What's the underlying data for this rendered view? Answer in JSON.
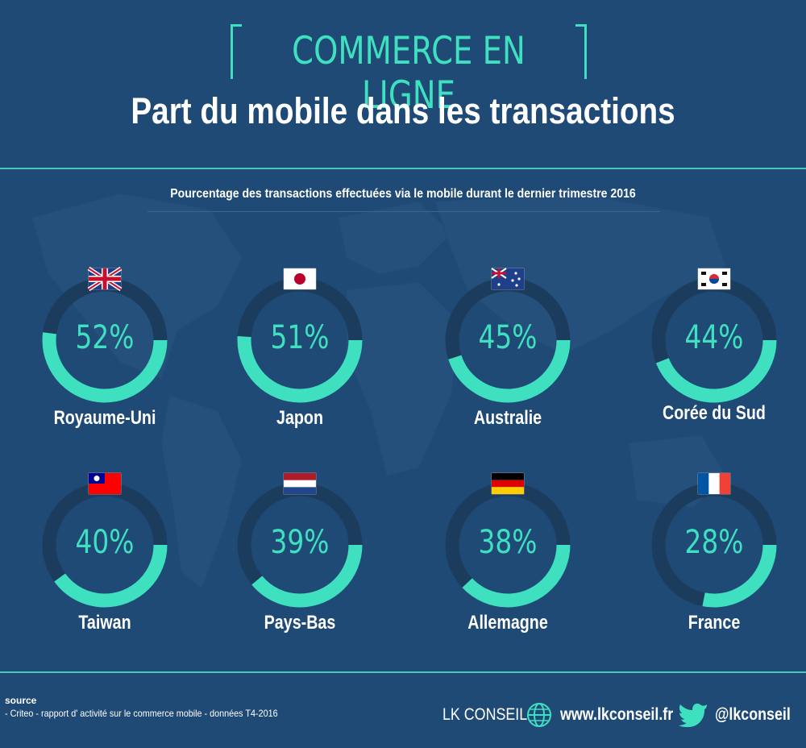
{
  "header": {
    "kicker": "COMMERCE EN LIGNE",
    "title": "Part du mobile dans les transactions",
    "subtitle": "Pourcentage des transactions effectuées via le mobile  durant le dernier trimestre 2016"
  },
  "colors": {
    "background": "#1f4a75",
    "accent": "#3fe0c0",
    "ring_track": "#1c3c5d"
  },
  "chart_data": {
    "type": "donut",
    "unit": "%",
    "categories": [
      "Royaume-Uni",
      "Japon",
      "Australie",
      "Corée du Sud",
      "Taiwan",
      "Pays-Bas",
      "Allemagne",
      "France"
    ],
    "values": [
      52,
      51,
      45,
      44,
      40,
      39,
      38,
      28
    ],
    "value_labels": [
      "52%",
      "51%",
      "45%",
      "44%",
      "40%",
      "39%",
      "38%",
      "28%"
    ],
    "flags": [
      "flag-uk-icon",
      "flag-japan-icon",
      "flag-australia-icon",
      "flag-south-korea-icon",
      "flag-taiwan-icon",
      "flag-netherlands-icon",
      "flag-germany-icon",
      "flag-france-icon"
    ],
    "title": "Part du mobile dans les transactions",
    "xlabel": "",
    "ylabel": ""
  },
  "footer": {
    "source_head": "source",
    "source_text": "- Criteo - rapport d' activité sur le commerce mobile -  données T4-2016",
    "brand": "LK CONSEIL",
    "globe_icon": "globe-icon",
    "website": "www.lkconseil.fr",
    "twitter_icon": "twitter-icon",
    "handle": "@lkconseil"
  }
}
